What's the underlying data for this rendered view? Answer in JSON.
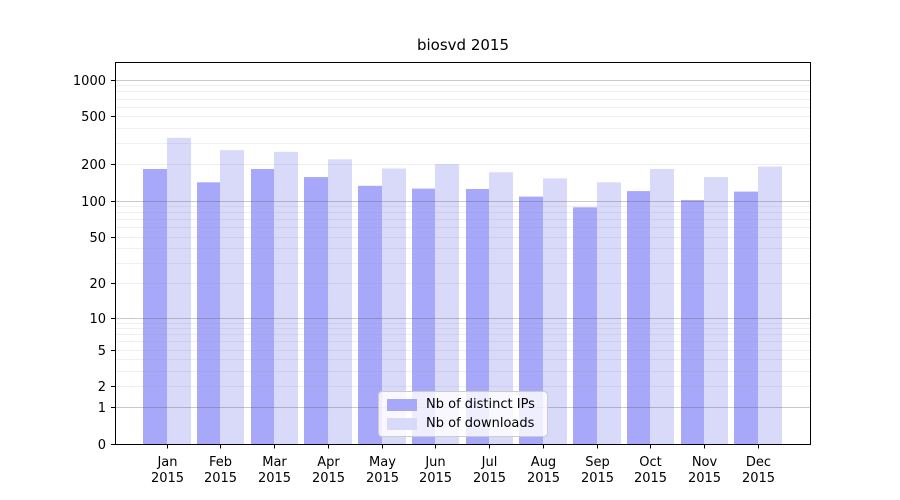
{
  "figure": {
    "title": "biosvd 2015"
  },
  "colors": {
    "distinct_ips": "#a8a8fa",
    "downloads": "#d9d9f9",
    "axis": "#000000",
    "grid_major": "rgba(90,90,90,0.33)",
    "grid_minor": "rgba(150,150,150,0.15)",
    "legend_border": "#cccccc"
  },
  "legend": {
    "items": [
      {
        "label": "Nb of distinct IPs",
        "color_key": "distinct_ips"
      },
      {
        "label": "Nb of downloads",
        "color_key": "downloads"
      }
    ]
  },
  "chart_data": {
    "type": "bar",
    "title": "biosvd 2015",
    "categories": [
      "Jan 2015",
      "Feb 2015",
      "Mar 2015",
      "Apr 2015",
      "May 2015",
      "Jun 2015",
      "Jul 2015",
      "Aug 2015",
      "Sep 2015",
      "Oct 2015",
      "Nov 2015",
      "Dec 2015"
    ],
    "series": [
      {
        "name": "Nb of distinct IPs",
        "color_key": "distinct_ips",
        "values": [
          183,
          142,
          183,
          157,
          133,
          126,
          125,
          108,
          88,
          120,
          101,
          119
        ]
      },
      {
        "name": "Nb of downloads",
        "color_key": "downloads",
        "values": [
          332,
          262,
          254,
          220,
          185,
          201,
          172,
          153,
          142,
          183,
          157,
          192
        ]
      }
    ],
    "xlabel": "",
    "ylabel": "",
    "yscale": "log1p",
    "yticks": [
      0,
      1,
      2,
      5,
      10,
      20,
      50,
      100,
      200,
      500,
      1000
    ],
    "ylim": [
      0,
      1400
    ],
    "grid": true,
    "grid_over_bars": true,
    "legend_position": "lower center"
  }
}
